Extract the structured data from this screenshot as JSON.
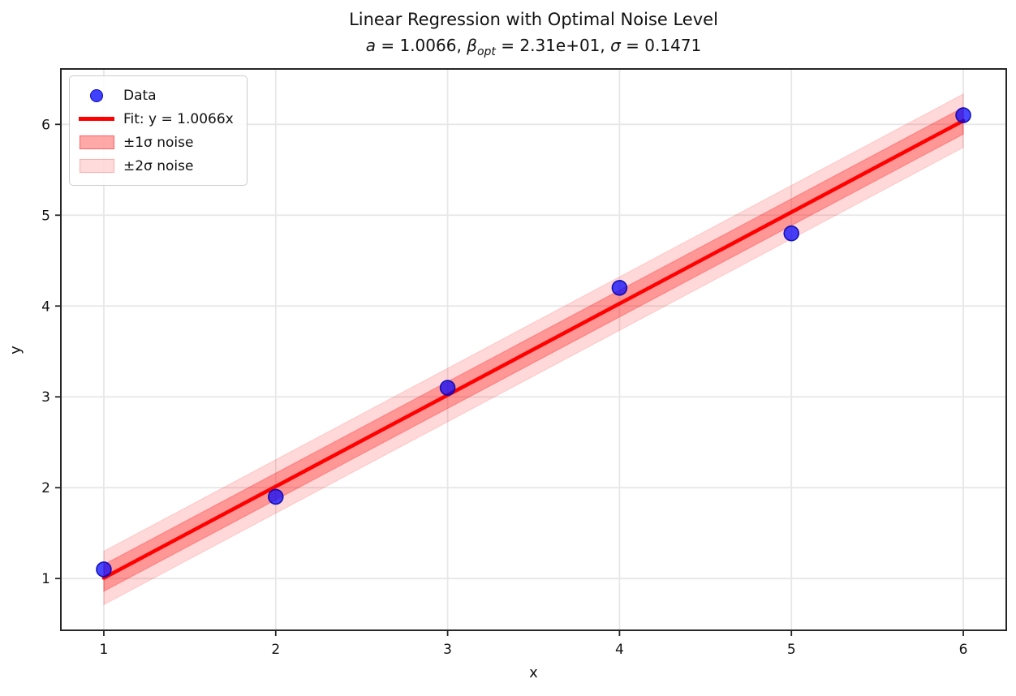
{
  "figure": {
    "title": "Linear Regression with Optimal Noise Level",
    "subtitle_text": "a = 1.0066, β_opt = 2.31e+01, σ = 0.1471",
    "subtitle_parts": [
      {
        "t": "a",
        "s": "i"
      },
      {
        "t": " = 1.0066, ",
        "s": "n"
      },
      {
        "t": "β",
        "s": "i"
      },
      {
        "t": "opt",
        "s": "sub"
      },
      {
        "t": " = 2.31e+01, ",
        "s": "n"
      },
      {
        "t": "σ",
        "s": "i"
      },
      {
        "t": " = 0.1471",
        "s": "n"
      }
    ],
    "xlabel": "x",
    "ylabel": "y"
  },
  "legend": {
    "position": "upper left",
    "items": [
      {
        "swatch": "dot",
        "label": "Data"
      },
      {
        "swatch": "line",
        "label": "Fit: y = 1.0066x"
      },
      {
        "swatch": "band1",
        "label": "±1σ noise"
      },
      {
        "swatch": "band2",
        "label": "±2σ noise"
      }
    ]
  },
  "chart_data": {
    "type": "scatter",
    "title": "Linear Regression with Optimal Noise Level",
    "subtitle": "a = 1.0066, β_opt = 2.31e+01, σ = 0.1471",
    "xlabel": "x",
    "ylabel": "y",
    "xlim": [
      0.75,
      6.25
    ],
    "ylim": [
      0.43,
      6.61
    ],
    "xticks": [
      1,
      2,
      3,
      4,
      5,
      6
    ],
    "yticks": [
      1,
      2,
      3,
      4,
      5,
      6
    ],
    "grid": true,
    "legend_position": "upper left",
    "points": {
      "name": "Data",
      "x": [
        1,
        2,
        3,
        4,
        5,
        6
      ],
      "y": [
        1.1,
        1.9,
        3.1,
        4.2,
        4.8,
        6.1
      ]
    },
    "fit_line": {
      "name": "Fit: y = 1.0066x",
      "slope": 1.0066,
      "intercept": 0,
      "x_start": 1,
      "x_end": 6
    },
    "bands": [
      {
        "name": "±2σ noise",
        "half_width": 0.2942,
        "alpha": 0.15
      },
      {
        "name": "±1σ noise",
        "half_width": 0.1471,
        "alpha": 0.3
      }
    ],
    "params": {
      "a": "1.0066",
      "beta_opt": "2.31e+01",
      "sigma": "0.1471"
    },
    "colors": {
      "points_fill": "#0000ff",
      "points_edge": "#0000aa",
      "fit_line": "#ff0000",
      "band": "#ff0000",
      "grid": "#e7e7e7",
      "spine": "#262626",
      "tick_label": "#111111"
    }
  }
}
